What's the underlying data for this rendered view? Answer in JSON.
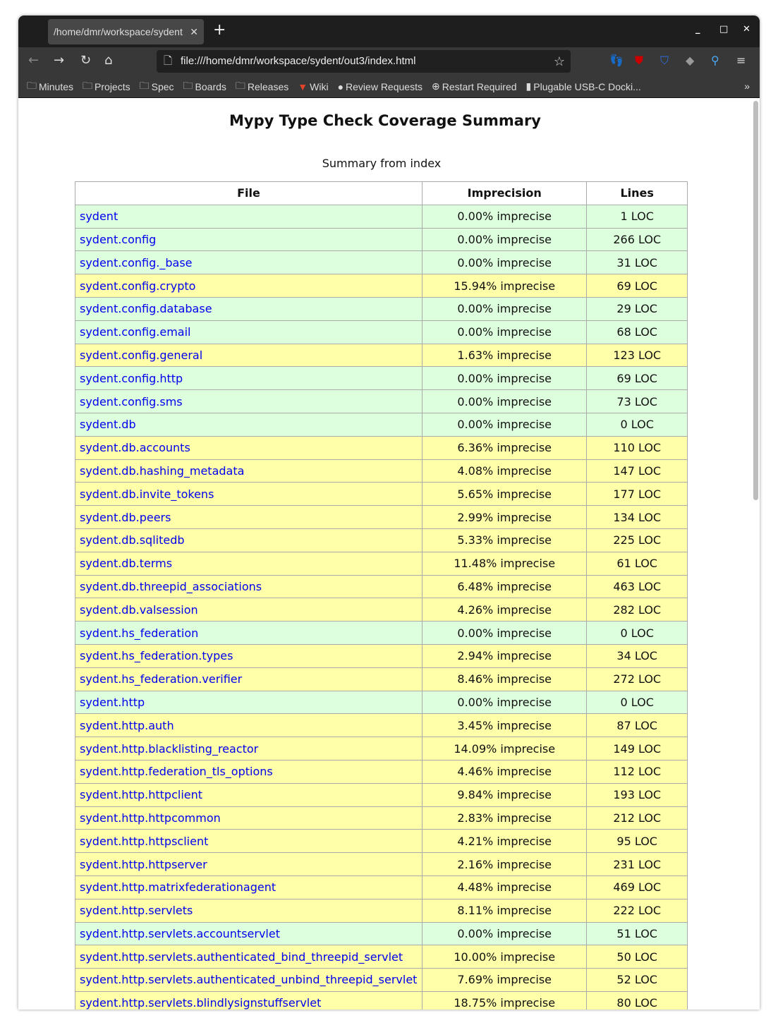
{
  "browser": {
    "tab_title": "/home/dmr/workspace/sydent",
    "url": "file:///home/dmr/workspace/sydent/out3/index.html",
    "bookmarks": [
      "Minutes",
      "Projects",
      "Spec",
      "Boards",
      "Releases",
      "Wiki",
      "Review Requests",
      "Restart Required",
      "Plugable USB-C Docki..."
    ]
  },
  "page": {
    "title": "Mypy Type Check Coverage Summary",
    "caption": "Summary from index",
    "headers": [
      "File",
      "Imprecision",
      "Lines"
    ],
    "colors": {
      "precise": "#ddffdd",
      "imprecise": "#ffffaa",
      "link": "#0000ee"
    },
    "rows": [
      {
        "file": "sydent",
        "imprecision": "0.00% imprecise",
        "lines": "1 LOC",
        "status": "g"
      },
      {
        "file": "sydent.config",
        "imprecision": "0.00% imprecise",
        "lines": "266 LOC",
        "status": "g"
      },
      {
        "file": "sydent.config._base",
        "imprecision": "0.00% imprecise",
        "lines": "31 LOC",
        "status": "g"
      },
      {
        "file": "sydent.config.crypto",
        "imprecision": "15.94% imprecise",
        "lines": "69 LOC",
        "status": "y"
      },
      {
        "file": "sydent.config.database",
        "imprecision": "0.00% imprecise",
        "lines": "29 LOC",
        "status": "g"
      },
      {
        "file": "sydent.config.email",
        "imprecision": "0.00% imprecise",
        "lines": "68 LOC",
        "status": "g"
      },
      {
        "file": "sydent.config.general",
        "imprecision": "1.63% imprecise",
        "lines": "123 LOC",
        "status": "y"
      },
      {
        "file": "sydent.config.http",
        "imprecision": "0.00% imprecise",
        "lines": "69 LOC",
        "status": "g"
      },
      {
        "file": "sydent.config.sms",
        "imprecision": "0.00% imprecise",
        "lines": "73 LOC",
        "status": "g"
      },
      {
        "file": "sydent.db",
        "imprecision": "0.00% imprecise",
        "lines": "0 LOC",
        "status": "g"
      },
      {
        "file": "sydent.db.accounts",
        "imprecision": "6.36% imprecise",
        "lines": "110 LOC",
        "status": "y"
      },
      {
        "file": "sydent.db.hashing_metadata",
        "imprecision": "4.08% imprecise",
        "lines": "147 LOC",
        "status": "y"
      },
      {
        "file": "sydent.db.invite_tokens",
        "imprecision": "5.65% imprecise",
        "lines": "177 LOC",
        "status": "y"
      },
      {
        "file": "sydent.db.peers",
        "imprecision": "2.99% imprecise",
        "lines": "134 LOC",
        "status": "y"
      },
      {
        "file": "sydent.db.sqlitedb",
        "imprecision": "5.33% imprecise",
        "lines": "225 LOC",
        "status": "y"
      },
      {
        "file": "sydent.db.terms",
        "imprecision": "11.48% imprecise",
        "lines": "61 LOC",
        "status": "y"
      },
      {
        "file": "sydent.db.threepid_associations",
        "imprecision": "6.48% imprecise",
        "lines": "463 LOC",
        "status": "y"
      },
      {
        "file": "sydent.db.valsession",
        "imprecision": "4.26% imprecise",
        "lines": "282 LOC",
        "status": "y"
      },
      {
        "file": "sydent.hs_federation",
        "imprecision": "0.00% imprecise",
        "lines": "0 LOC",
        "status": "g"
      },
      {
        "file": "sydent.hs_federation.types",
        "imprecision": "2.94% imprecise",
        "lines": "34 LOC",
        "status": "y"
      },
      {
        "file": "sydent.hs_federation.verifier",
        "imprecision": "8.46% imprecise",
        "lines": "272 LOC",
        "status": "y"
      },
      {
        "file": "sydent.http",
        "imprecision": "0.00% imprecise",
        "lines": "0 LOC",
        "status": "g"
      },
      {
        "file": "sydent.http.auth",
        "imprecision": "3.45% imprecise",
        "lines": "87 LOC",
        "status": "y"
      },
      {
        "file": "sydent.http.blacklisting_reactor",
        "imprecision": "14.09% imprecise",
        "lines": "149 LOC",
        "status": "y"
      },
      {
        "file": "sydent.http.federation_tls_options",
        "imprecision": "4.46% imprecise",
        "lines": "112 LOC",
        "status": "y"
      },
      {
        "file": "sydent.http.httpclient",
        "imprecision": "9.84% imprecise",
        "lines": "193 LOC",
        "status": "y"
      },
      {
        "file": "sydent.http.httpcommon",
        "imprecision": "2.83% imprecise",
        "lines": "212 LOC",
        "status": "y"
      },
      {
        "file": "sydent.http.httpsclient",
        "imprecision": "4.21% imprecise",
        "lines": "95 LOC",
        "status": "y"
      },
      {
        "file": "sydent.http.httpserver",
        "imprecision": "2.16% imprecise",
        "lines": "231 LOC",
        "status": "y"
      },
      {
        "file": "sydent.http.matrixfederationagent",
        "imprecision": "4.48% imprecise",
        "lines": "469 LOC",
        "status": "y"
      },
      {
        "file": "sydent.http.servlets",
        "imprecision": "8.11% imprecise",
        "lines": "222 LOC",
        "status": "y"
      },
      {
        "file": "sydent.http.servlets.accountservlet",
        "imprecision": "0.00% imprecise",
        "lines": "51 LOC",
        "status": "g"
      },
      {
        "file": "sydent.http.servlets.authenticated_bind_threepid_servlet",
        "imprecision": "10.00% imprecise",
        "lines": "50 LOC",
        "status": "y"
      },
      {
        "file": "sydent.http.servlets.authenticated_unbind_threepid_servlet",
        "imprecision": "7.69% imprecise",
        "lines": "52 LOC",
        "status": "y"
      },
      {
        "file": "sydent.http.servlets.blindlysignstuffservlet",
        "imprecision": "18.75% imprecise",
        "lines": "80 LOC",
        "status": "y"
      }
    ]
  }
}
